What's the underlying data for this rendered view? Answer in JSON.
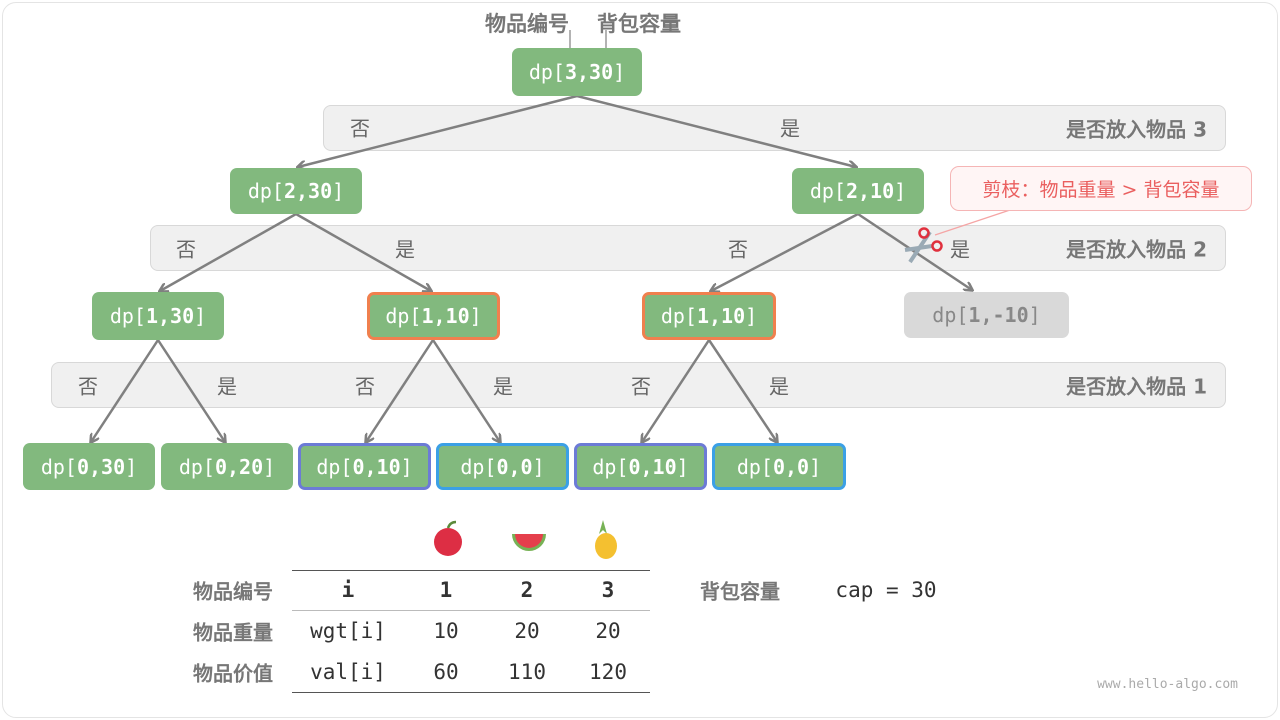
{
  "header": {
    "item_label": "物品编号",
    "capacity_label": "背包容量"
  },
  "bands": [
    {
      "title": "是否放入物品 3",
      "labels": [
        "否",
        "是"
      ]
    },
    {
      "title": "是否放入物品 2",
      "labels": [
        "否",
        "是",
        "否",
        "是"
      ]
    },
    {
      "title": "是否放入物品 1",
      "labels": [
        "否",
        "是",
        "否",
        "是",
        "否",
        "是"
      ]
    }
  ],
  "nodes": {
    "root": {
      "prefix": "dp[",
      "args": "3,30",
      "suffix": "]"
    },
    "l1": [
      {
        "prefix": "dp[",
        "args": "2,30",
        "suffix": "]"
      },
      {
        "prefix": "dp[",
        "args": "2,10",
        "suffix": "]"
      }
    ],
    "l2": [
      {
        "prefix": "dp[",
        "args": "1,30",
        "suffix": "]",
        "highlight": "none"
      },
      {
        "prefix": "dp[",
        "args": "1,10",
        "suffix": "]",
        "highlight": "orange"
      },
      {
        "prefix": "dp[",
        "args": "1,10",
        "suffix": "]",
        "highlight": "orange"
      },
      {
        "prefix": "dp[",
        "args": "1,-10",
        "suffix": "]",
        "highlight": "pruned"
      }
    ],
    "l3": [
      {
        "prefix": "dp[",
        "args": "0,30",
        "suffix": "]",
        "highlight": "none"
      },
      {
        "prefix": "dp[",
        "args": "0,20",
        "suffix": "]",
        "highlight": "none"
      },
      {
        "prefix": "dp[",
        "args": "0,10",
        "suffix": "]",
        "highlight": "purple"
      },
      {
        "prefix": "dp[",
        "args": "0,0",
        "suffix": "]",
        "highlight": "blue"
      },
      {
        "prefix": "dp[",
        "args": "0,10",
        "suffix": "]",
        "highlight": "purple"
      },
      {
        "prefix": "dp[",
        "args": "0,0",
        "suffix": "]",
        "highlight": "blue"
      }
    ]
  },
  "callout": {
    "text": "剪枝：物品重量 > 背包容量",
    "icon": "scissors-icon"
  },
  "table": {
    "row_labels": [
      "物品编号",
      "物品重量",
      "物品价值"
    ],
    "header": [
      "i",
      "1",
      "2",
      "3"
    ],
    "rows": [
      [
        "wgt[i]",
        "10",
        "20",
        "20"
      ],
      [
        "val[i]",
        "60",
        "110",
        "120"
      ]
    ],
    "icons": [
      "apple-icon",
      "watermelon-icon",
      "pineapple-icon"
    ]
  },
  "capacity": {
    "label": "背包容量",
    "value": "cap = 30"
  },
  "watermark": "www.hello-algo.com",
  "colors": {
    "node": "#82b97e",
    "pruned": "#d9d9d9",
    "orange": "#f0804e",
    "purple": "#6c7bd6",
    "blue": "#3ba0e6",
    "callout": "#ea5f5f"
  }
}
